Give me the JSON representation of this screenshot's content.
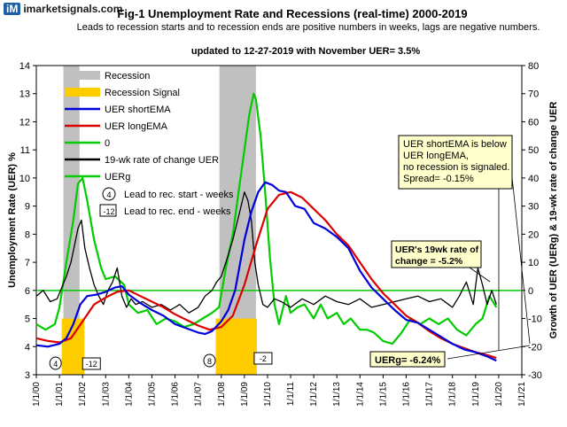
{
  "logo": {
    "mark": "iM",
    "site": "imarketsignals.com"
  },
  "chart_data": {
    "type": "line",
    "title": "Fig-1  Unemployment Rate and Recessions (real-time) 2000-2019",
    "subtitle": "Leads to recession starts and to recession ends are positive numbers in weeks, lags are negative numbers.",
    "update_note": "updated to 12-27-2019 with November UER= 3.5%",
    "ylabel": "Unemployment Rate (UER) %",
    "y2label": "Growth of UER (UERg) & 19-wk rate of change UER",
    "ylim": [
      3,
      14
    ],
    "y2lim": [
      -30,
      80
    ],
    "y_ticks": [
      "3",
      "4",
      "5",
      "6",
      "7",
      "8",
      "9",
      "10",
      "11",
      "12",
      "13",
      "14"
    ],
    "y2_ticks": [
      "-30",
      "-20",
      "-10",
      "0",
      "10",
      "20",
      "30",
      "40",
      "50",
      "60",
      "70",
      "80"
    ],
    "x_ticks": [
      "1/1/00",
      "1/1/01",
      "1/1/02",
      "1/1/03",
      "1/1/04",
      "1/1/05",
      "1/1/06",
      "1/1/07",
      "1/1/08",
      "1/1/09",
      "1/1/10",
      "1/1/11",
      "1/1/12",
      "1/1/13",
      "1/1/14",
      "1/1/15",
      "1/1/16",
      "1/1/17",
      "1/1/18",
      "1/1/19",
      "1/1/20",
      "1/1/21"
    ],
    "xlim": [
      2000,
      2021
    ],
    "recessions": [
      [
        2001.17,
        2001.87
      ],
      [
        2007.92,
        2009.5
      ]
    ],
    "recession_signals": [
      [
        2001.1,
        2002.08
      ],
      [
        2007.76,
        2009.54
      ]
    ],
    "signal_level": 5,
    "legend": [
      {
        "label": "Recession",
        "color": "#c0c0c0",
        "kind": "box"
      },
      {
        "label": "Recession Signal",
        "color": "#ffcc00",
        "kind": "box"
      },
      {
        "label": "UER shortEMA",
        "color": "#0000dd",
        "kind": "line"
      },
      {
        "label": "UER longEMA",
        "color": "#dd0000",
        "kind": "line"
      },
      {
        "label": "0",
        "color": "#00cc00",
        "kind": "line"
      },
      {
        "label": "19-wk rate of change UER",
        "color": "#000000",
        "kind": "line"
      },
      {
        "label": "UERg",
        "color": "#00cc00",
        "kind": "line"
      }
    ],
    "legend_notes": [
      {
        "tag": "4",
        "text": "Lead to rec. start - weeks"
      },
      {
        "tag": "-12",
        "text": "Lead to rec. end - weeks"
      }
    ],
    "series": [
      {
        "name": "UER shortEMA",
        "axis": "left",
        "color": "#0000dd",
        "x": [
          2000,
          2000.5,
          2001,
          2001.3,
          2001.6,
          2001.9,
          2002.2,
          2002.6,
          2003,
          2003.4,
          2003.7,
          2004,
          2004.5,
          2005,
          2005.5,
          2006,
          2006.5,
          2007,
          2007.3,
          2007.6,
          2008,
          2008.3,
          2008.6,
          2009,
          2009.3,
          2009.6,
          2009.9,
          2010.2,
          2010.5,
          2010.8,
          2011.2,
          2011.6,
          2012,
          2012.5,
          2013,
          2013.5,
          2014,
          2014.5,
          2015,
          2015.5,
          2016,
          2016.5,
          2017,
          2017.5,
          2018,
          2018.5,
          2019,
          2019.5,
          2019.9
        ],
        "y": [
          4.05,
          4.0,
          4.1,
          4.3,
          4.8,
          5.5,
          5.8,
          5.85,
          5.95,
          6.1,
          6.15,
          5.85,
          5.55,
          5.3,
          5.1,
          4.8,
          4.65,
          4.5,
          4.45,
          4.55,
          4.9,
          5.3,
          6.0,
          7.8,
          8.8,
          9.5,
          9.85,
          9.75,
          9.55,
          9.5,
          9.0,
          8.9,
          8.4,
          8.2,
          7.9,
          7.5,
          6.7,
          6.1,
          5.7,
          5.3,
          4.95,
          4.85,
          4.6,
          4.35,
          4.1,
          3.9,
          3.8,
          3.65,
          3.5
        ]
      },
      {
        "name": "UER longEMA",
        "axis": "left",
        "color": "#dd0000",
        "x": [
          2000,
          2000.5,
          2001,
          2001.5,
          2002,
          2002.5,
          2003,
          2003.5,
          2004,
          2004.5,
          2005,
          2005.5,
          2006,
          2006.5,
          2007,
          2007.5,
          2008,
          2008.5,
          2009,
          2009.5,
          2010,
          2010.5,
          2011,
          2011.5,
          2012,
          2012.5,
          2013,
          2013.5,
          2014,
          2014.5,
          2015,
          2015.5,
          2016,
          2016.5,
          2017,
          2017.5,
          2018,
          2018.5,
          2019,
          2019.5,
          2019.9
        ],
        "y": [
          4.3,
          4.2,
          4.15,
          4.3,
          4.9,
          5.5,
          5.75,
          5.95,
          6.0,
          5.8,
          5.6,
          5.4,
          5.15,
          4.95,
          4.75,
          4.6,
          4.7,
          5.1,
          6.2,
          7.6,
          8.9,
          9.4,
          9.5,
          9.3,
          8.9,
          8.5,
          8.0,
          7.6,
          7.0,
          6.4,
          5.9,
          5.5,
          5.1,
          4.85,
          4.55,
          4.3,
          4.1,
          3.95,
          3.8,
          3.7,
          3.6
        ]
      },
      {
        "name": "19-wk rate of change UER",
        "axis": "right",
        "color": "#000000",
        "x": [
          2000,
          2000.3,
          2000.6,
          2000.9,
          2001,
          2001.3,
          2001.5,
          2001.7,
          2001.8,
          2001.95,
          2002.1,
          2002.3,
          2002.5,
          2002.7,
          2002.9,
          2003.1,
          2003.3,
          2003.5,
          2003.7,
          2003.9,
          2004.1,
          2004.3,
          2004.6,
          2005,
          2005.4,
          2005.8,
          2006.2,
          2006.6,
          2007,
          2007.3,
          2007.6,
          2007.8,
          2008,
          2008.2,
          2008.5,
          2008.8,
          2009,
          2009.15,
          2009.3,
          2009.45,
          2009.6,
          2009.8,
          2010,
          2010.3,
          2010.6,
          2011,
          2011.5,
          2012,
          2012.5,
          2013,
          2013.5,
          2014,
          2014.5,
          2015,
          2015.5,
          2016,
          2016.5,
          2017,
          2017.5,
          2018,
          2018.3,
          2018.6,
          2018.9,
          2019.1,
          2019.3,
          2019.5,
          2019.7,
          2019.9
        ],
        "y": [
          -2,
          0,
          -4,
          -3,
          -1,
          5,
          10,
          18,
          22,
          25,
          15,
          8,
          2,
          -2,
          -5,
          0,
          3,
          8,
          -2,
          -6,
          -3,
          -5,
          -4,
          -6,
          -5,
          -7,
          -5,
          -8,
          -6,
          -2,
          0,
          3,
          5,
          10,
          18,
          28,
          35,
          32,
          25,
          10,
          2,
          -5,
          -6,
          -3,
          -4,
          -6,
          -3,
          -5,
          -2,
          -4,
          -5,
          -3,
          -6,
          -5,
          -4,
          -3,
          -2,
          -4,
          -3,
          -6,
          -2,
          3,
          -5,
          8,
          2,
          -5,
          0,
          -5
        ]
      },
      {
        "name": "UERg",
        "axis": "right",
        "color": "#00cc00",
        "x": [
          2000,
          2000.4,
          2000.8,
          2001.0,
          2001.3,
          2001.6,
          2001.8,
          2002.0,
          2002.2,
          2002.5,
          2002.8,
          2003.0,
          2003.4,
          2003.8,
          2004.0,
          2004.4,
          2004.8,
          2005.2,
          2005.6,
          2006.0,
          2006.4,
          2006.8,
          2007.2,
          2007.6,
          2007.9,
          2008.2,
          2008.5,
          2008.8,
          2009.0,
          2009.2,
          2009.4,
          2009.5,
          2009.7,
          2009.9,
          2010.1,
          2010.3,
          2010.5,
          2010.8,
          2011.0,
          2011.3,
          2011.6,
          2012.0,
          2012.3,
          2012.6,
          2013.0,
          2013.3,
          2013.6,
          2014.0,
          2014.3,
          2014.6,
          2015.0,
          2015.4,
          2015.8,
          2016.2,
          2016.6,
          2017.0,
          2017.4,
          2017.8,
          2018.2,
          2018.6,
          2019.0,
          2019.3,
          2019.6,
          2019.9
        ],
        "y": [
          -12,
          -14,
          -12,
          -6,
          10,
          25,
          38,
          40,
          32,
          18,
          8,
          4,
          5,
          2,
          -5,
          -8,
          -7,
          -12,
          -10,
          -11,
          -13,
          -12,
          -10,
          -8,
          -6,
          8,
          20,
          38,
          50,
          62,
          70,
          68,
          55,
          35,
          12,
          -5,
          -12,
          -2,
          -8,
          -6,
          -5,
          -10,
          -5,
          -10,
          -8,
          -12,
          -10,
          -14,
          -14,
          -15,
          -18,
          -19,
          -15,
          -10,
          -12,
          -10,
          -12,
          -10,
          -14,
          -16,
          -12,
          -10,
          -2,
          -6
        ]
      }
    ],
    "zero_line": 0,
    "annotations": {
      "box_main": [
        "UER shortEMA  is below",
        "UER longEMA,",
        "no recession is signaled.",
        "Spread= -0.15%"
      ],
      "box_roc": [
        "UER's 19wk rate of",
        "change  = -5.2%"
      ],
      "box_uerg": "UERg=   -6.24%",
      "markers": [
        {
          "tag": "4",
          "kind": "oval"
        },
        {
          "tag": "-12",
          "kind": "rect"
        },
        {
          "tag": "8",
          "kind": "oval"
        },
        {
          "tag": "-2",
          "kind": "rect"
        }
      ]
    }
  }
}
